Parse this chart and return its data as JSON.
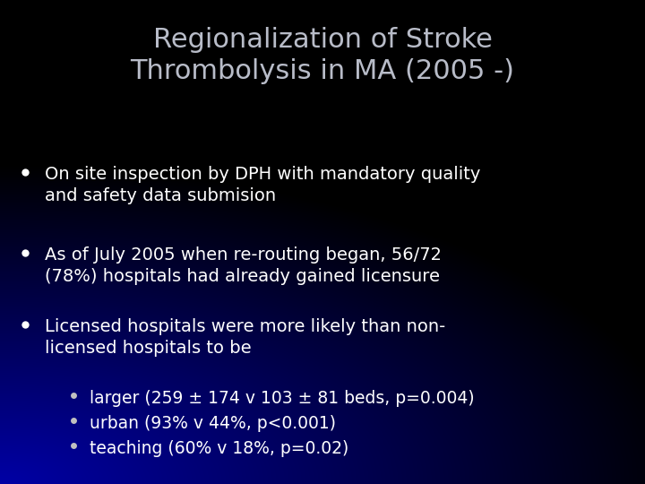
{
  "title_line1": "Regionalization of Stroke",
  "title_line2": "Thrombolysis in MA (2005 -)",
  "title_color": "#b8bcc8",
  "title_fontsize": 22,
  "background_color": "#000000",
  "bullet_color": "#ffffff",
  "bullet_fontsize": 14,
  "sub_bullet_fontsize": 13.5,
  "bullet_items": [
    "On site inspection by DPH with mandatory quality\nand safety data submision",
    "As of July 2005 when re-routing began, 56/72\n(78%) hospitals had already gained licensure",
    "Licensed hospitals were more likely than non-\nlicensed hospitals to be"
  ],
  "sub_bullet_items": [
    "larger (259 ± 174 v 103 ± 81 beds, p=0.004)",
    "urban (93% v 44%, p<0.001)",
    "teaching (60% v 18%, p=0.02)"
  ]
}
